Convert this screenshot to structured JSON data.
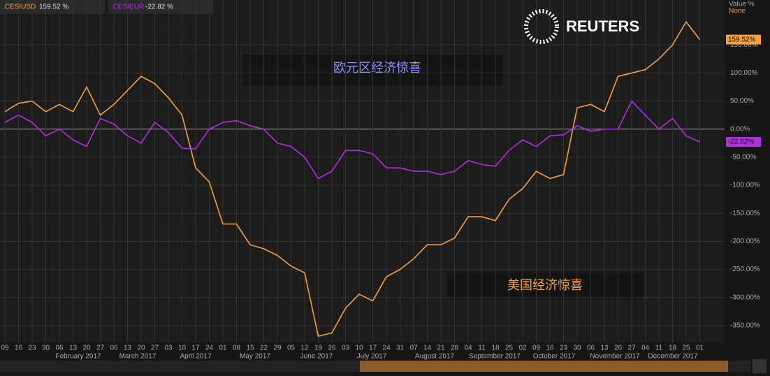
{
  "chart_data": {
    "type": "line",
    "header": [
      {
        "name": ".CESIUSD",
        "value": "159.52 %"
      },
      {
        "name": ".CESIEUR",
        "value": "-22.82 %"
      }
    ],
    "axis_title": "Value %",
    "axis_subtitle": "None",
    "brand": "REUTERS",
    "annotations": [
      "欧元区经济惊喜",
      "美国经济惊喜"
    ],
    "categories": [
      "09",
      "16",
      "23",
      "30",
      "06",
      "13",
      "20",
      "27",
      "06",
      "13",
      "20",
      "27",
      "03",
      "10",
      "17",
      "24",
      "01",
      "08",
      "15",
      "22",
      "29",
      "05",
      "12",
      "19",
      "26",
      "03",
      "10",
      "17",
      "24",
      "31",
      "07",
      "14",
      "21",
      "28",
      "04",
      "11",
      "18",
      "25",
      "02",
      "09",
      "16",
      "23",
      "30",
      "06",
      "13",
      "20",
      "27",
      "04",
      "11",
      "18",
      "25",
      "01"
    ],
    "months": [
      "February 2017",
      "March 2017",
      "April 2017",
      "May 2017",
      "June 2017",
      "July 2017",
      "August 2017",
      "September 2017",
      "October 2017",
      "November 2017",
      "December 2017"
    ],
    "series": [
      {
        "name": ".CESIUSD",
        "color": "#f5a040",
        "last_label": "159.52%",
        "values": [
          31,
          46,
          50,
          31,
          44,
          31,
          75,
          25,
          44,
          69,
          94,
          81,
          56,
          25,
          -69,
          -94,
          -169,
          -169,
          -206,
          -213,
          -225,
          -244,
          -256,
          -369,
          -363,
          -319,
          -294,
          -306,
          -263,
          -250,
          -231,
          -206,
          -206,
          -194,
          -156,
          -156,
          -163,
          -125,
          -106,
          -75,
          -88,
          -81,
          38,
          44,
          31,
          94,
          100,
          106,
          125,
          150,
          191,
          159.52
        ]
      },
      {
        "name": ".CESIEUR",
        "color": "#b030e0",
        "last_label": "-22.82%",
        "values": [
          12,
          25,
          12,
          -12,
          0,
          -19,
          -31,
          19,
          9,
          -12,
          -25,
          12,
          -6,
          -34,
          -35,
          0,
          12,
          15,
          6,
          0,
          -25,
          -31,
          -50,
          -88,
          -75,
          -38,
          -38,
          -44,
          -69,
          -69,
          -75,
          -75,
          -81,
          -75,
          -56,
          -63,
          -66,
          -38,
          -19,
          -31,
          -12,
          -10,
          6,
          -4,
          0,
          0,
          50,
          25,
          0,
          19,
          -12,
          -22.82
        ]
      }
    ],
    "ylim": [
      -380,
      230
    ],
    "yticks": [
      {
        "value": 150,
        "label": "150.00%"
      },
      {
        "value": 100,
        "label": "100.00%"
      },
      {
        "value": 50,
        "label": "50.00%"
      },
      {
        "value": 0,
        "label": "0.00%"
      },
      {
        "value": -50,
        "label": "-50.00%"
      },
      {
        "value": -100,
        "label": "-100.00%"
      },
      {
        "value": -150,
        "label": "-150.00%"
      },
      {
        "value": -200,
        "label": "-200.00%"
      },
      {
        "value": -250,
        "label": "-250.00%"
      },
      {
        "value": -300,
        "label": "-300.00%"
      },
      {
        "value": -350,
        "label": "-350.00%"
      }
    ],
    "grid": true
  }
}
